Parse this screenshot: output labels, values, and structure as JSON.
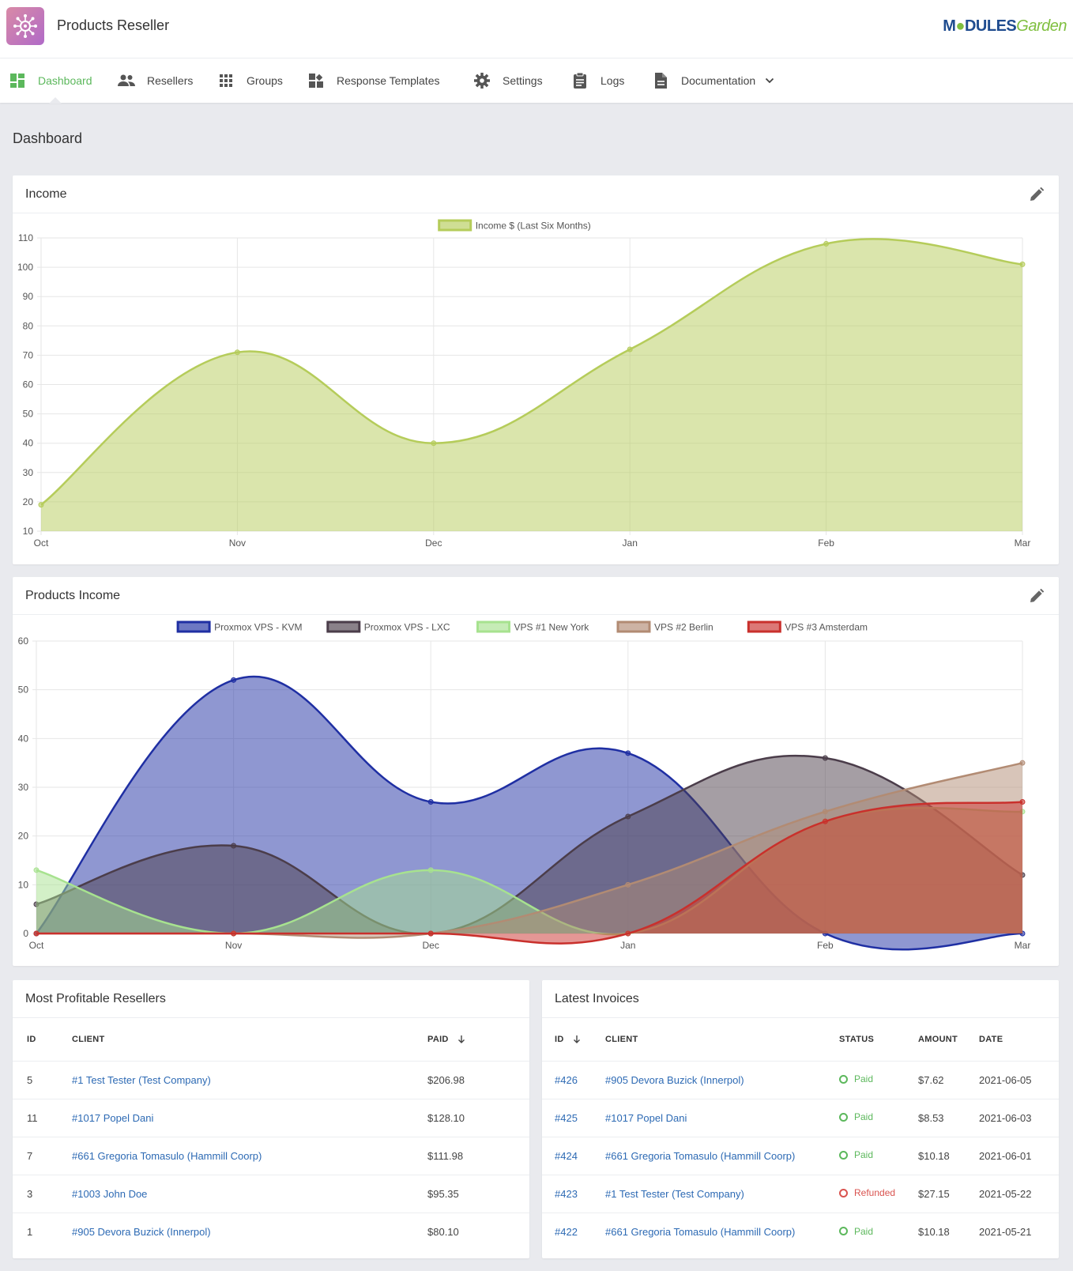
{
  "app": {
    "title": "Products Reseller",
    "brand_m": "M",
    "brand_dules": "DULES",
    "brand_garden": "Garden"
  },
  "nav": [
    {
      "label": "Dashboard",
      "icon": "dashboard-icon",
      "active": true
    },
    {
      "label": "Resellers",
      "icon": "users-icon"
    },
    {
      "label": "Groups",
      "icon": "grid-icon"
    },
    {
      "label": "Response Templates",
      "icon": "templates-icon"
    },
    {
      "label": "Settings",
      "icon": "gear-icon"
    },
    {
      "label": "Logs",
      "icon": "clipboard-icon"
    },
    {
      "label": "Documentation",
      "icon": "document-icon"
    }
  ],
  "page_title": "Dashboard",
  "income_panel": {
    "title": "Income"
  },
  "products_panel": {
    "title": "Products Income"
  },
  "chart_data": [
    {
      "type": "area",
      "categories": [
        "Oct",
        "Nov",
        "Dec",
        "Jan",
        "Feb",
        "Mar"
      ],
      "series": [
        {
          "name": "Income $ (Last Six Months)",
          "values": [
            19,
            71,
            40,
            72,
            108,
            101
          ],
          "color": "#b5cc5a"
        }
      ],
      "ylim": [
        10,
        110
      ],
      "yticks": [
        10,
        20,
        30,
        40,
        50,
        60,
        70,
        80,
        90,
        100,
        110
      ],
      "legend": "top-center",
      "grid": true
    },
    {
      "type": "area",
      "categories": [
        "Oct",
        "Nov",
        "Dec",
        "Jan",
        "Feb",
        "Mar"
      ],
      "series": [
        {
          "name": "Proxmox VPS - KVM",
          "values": [
            0,
            52,
            27,
            37,
            0,
            0
          ],
          "color": "#1f2fa3"
        },
        {
          "name": "Proxmox VPS - LXC",
          "values": [
            6,
            18,
            0,
            24,
            36,
            12
          ],
          "color": "#4b3d4a"
        },
        {
          "name": "VPS #1 New York",
          "values": [
            13,
            0,
            13,
            0,
            23,
            25
          ],
          "color": "#a7e28f"
        },
        {
          "name": "VPS #2 Berlin",
          "values": [
            0,
            0,
            0,
            10,
            25,
            35
          ],
          "color": "#b28b73"
        },
        {
          "name": "VPS #3 Amsterdam",
          "values": [
            0,
            0,
            0,
            0,
            23,
            27
          ],
          "color": "#c9302c"
        }
      ],
      "ylim": [
        0,
        60
      ],
      "yticks": [
        0,
        10,
        20,
        30,
        40,
        50,
        60
      ],
      "legend": "top-center",
      "grid": true
    }
  ],
  "resellers": {
    "title": "Most Profitable Resellers",
    "columns": {
      "id": "ID",
      "client": "CLIENT",
      "paid": "PAID"
    },
    "rows": [
      {
        "id": "5",
        "client": "#1 Test Tester (Test Company)",
        "paid": "$206.98"
      },
      {
        "id": "11",
        "client": "#1017 Popel Dani",
        "paid": "$128.10"
      },
      {
        "id": "7",
        "client": "#661 Gregoria Tomasulo (Hammill Coorp)",
        "paid": "$111.98"
      },
      {
        "id": "3",
        "client": "#1003 John Doe",
        "paid": "$95.35"
      },
      {
        "id": "1",
        "client": "#905 Devora Buzick (Innerpol)",
        "paid": "$80.10"
      }
    ]
  },
  "invoices": {
    "title": "Latest Invoices",
    "columns": {
      "id": "ID",
      "client": "CLIENT",
      "status": "STATUS",
      "amount": "AMOUNT",
      "date": "DATE"
    },
    "rows": [
      {
        "id": "#426",
        "client": "#905 Devora Buzick (Innerpol)",
        "status": "Paid",
        "amount": "$7.62",
        "date": "2021-06-05"
      },
      {
        "id": "#425",
        "client": "#1017 Popel Dani",
        "status": "Paid",
        "amount": "$8.53",
        "date": "2021-06-03"
      },
      {
        "id": "#424",
        "client": "#661 Gregoria Tomasulo (Hammill Coorp)",
        "status": "Paid",
        "amount": "$10.18",
        "date": "2021-06-01"
      },
      {
        "id": "#423",
        "client": "#1 Test Tester (Test Company)",
        "status": "Refunded",
        "amount": "$27.15",
        "date": "2021-05-22"
      },
      {
        "id": "#422",
        "client": "#661 Gregoria Tomasulo (Hammill Coorp)",
        "status": "Paid",
        "amount": "$10.18",
        "date": "2021-05-21"
      }
    ]
  },
  "colors": {
    "accent": "#5cb85c",
    "link": "#2d6ab4",
    "paid": "#5cb85c",
    "refunded": "#d9534f"
  }
}
